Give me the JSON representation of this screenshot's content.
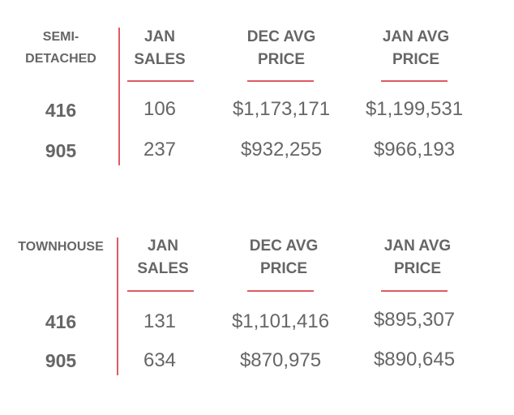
{
  "tables": [
    {
      "category_label": "SEMI-\nDETACHED",
      "columns": [
        "JAN\nSALES",
        "DEC AVG\nPRICE",
        "JAN AVG\nPRICE"
      ],
      "rows": [
        {
          "code": "416",
          "jan_sales": "106",
          "dec_avg_price": "$1,173,171",
          "jan_avg_price": "$1,199,531"
        },
        {
          "code": "905",
          "jan_sales": "237",
          "dec_avg_price": "$932,255",
          "jan_avg_price": "$966,193"
        }
      ]
    },
    {
      "category_label": "TOWNHOUSE",
      "columns": [
        "JAN\nSALES",
        "DEC AVG\nPRICE",
        "JAN AVG\nPRICE"
      ],
      "rows": [
        {
          "code": "416",
          "jan_sales": "131",
          "dec_avg_price": "$1,101,416",
          "jan_avg_price": "$895,307"
        },
        {
          "code": "905",
          "jan_sales": "634",
          "dec_avg_price": "$870,975",
          "jan_avg_price": "$890,645"
        }
      ]
    }
  ],
  "colors": {
    "text": "#666666",
    "accent": "#e05a62"
  }
}
